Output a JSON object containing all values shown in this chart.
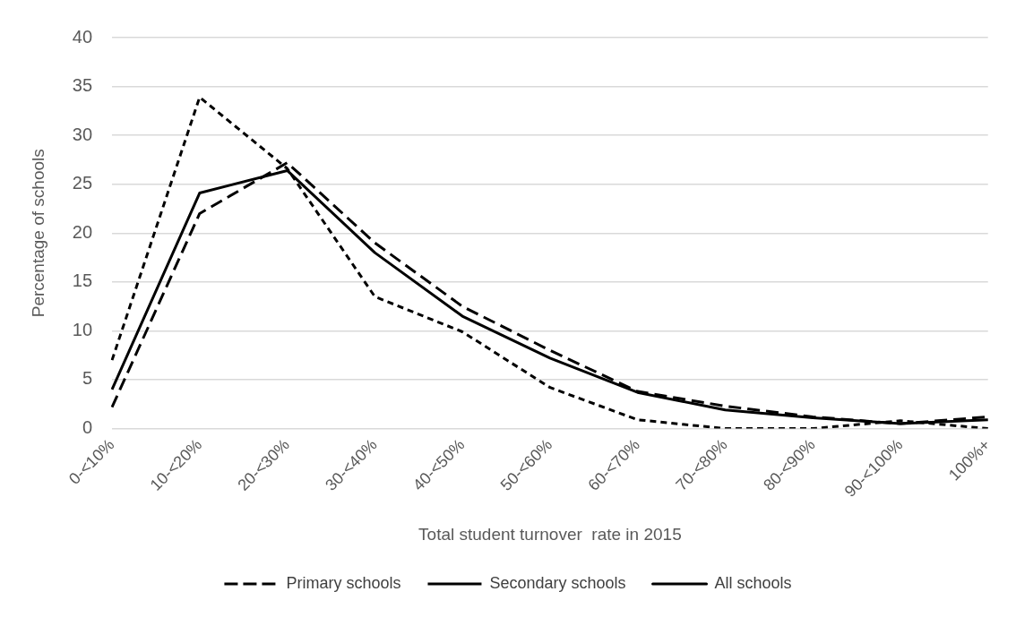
{
  "chart_data": {
    "type": "line",
    "xlabel": "Total student turnover  rate in 2015",
    "ylabel": "Percentage of schools",
    "categories": [
      "0-<10%",
      "10-<20%",
      "20-<30%",
      "30-<40%",
      "40-<50%",
      "50-<60%",
      "60-<70%",
      "70-<80%",
      "80-<90%",
      "90-<100%",
      "100%+"
    ],
    "series": [
      {
        "name": "Primary schools",
        "color": "#000000",
        "line_style": "dashed",
        "values": [
          2.2,
          22,
          27.2,
          19,
          12.5,
          8,
          3.8,
          2.3,
          1.2,
          0.5,
          1.2
        ]
      },
      {
        "name": "Secondary schools",
        "color": "#000000",
        "line_style": "dotted",
        "values": [
          7,
          33.9,
          26.6,
          13.5,
          9.9,
          4.2,
          0.9,
          0,
          0,
          0.8,
          0
        ]
      },
      {
        "name": "All schools",
        "color": "#000000",
        "line_style": "solid",
        "values": [
          4,
          24.1,
          26.4,
          18,
          11.5,
          7.2,
          3.7,
          1.9,
          1.1,
          0.5,
          0.9
        ]
      }
    ],
    "ylim": [
      0,
      40
    ],
    "yticks": [
      0,
      5,
      10,
      15,
      20,
      25,
      30,
      35,
      40
    ],
    "grid": "y",
    "legend": "bottom",
    "marker": "none"
  }
}
